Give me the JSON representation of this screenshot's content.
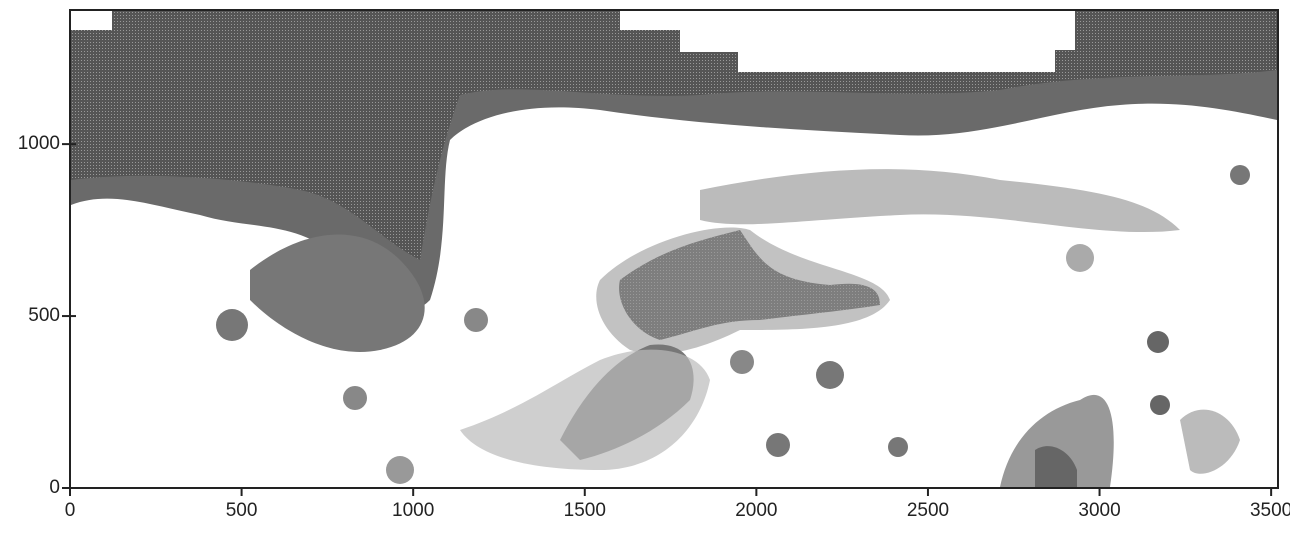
{
  "chart_data": {
    "type": "contour",
    "xlim": [
      0,
      3520
    ],
    "ylim": [
      0,
      1390
    ],
    "xticks": [
      0,
      500,
      1000,
      1500,
      2000,
      2500,
      3000,
      3500
    ],
    "yticks": [
      0,
      500,
      1000
    ]
  }
}
